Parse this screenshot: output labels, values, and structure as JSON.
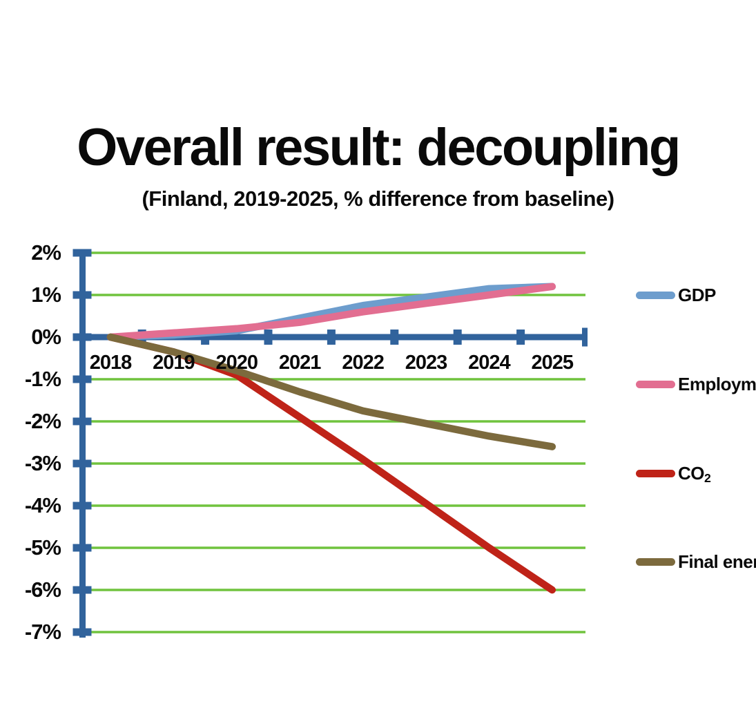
{
  "chart_data": {
    "type": "line",
    "title": "Overall result: decoupling",
    "subtitle": "(Finland, 2019-2025, % difference from baseline)",
    "x": [
      "2018",
      "2019",
      "2020",
      "2021",
      "2022",
      "2023",
      "2024",
      "2025"
    ],
    "xtick_labels": [
      "2018",
      "2019",
      "2020",
      "2021",
      "2022",
      "2023",
      "2024",
      "2025"
    ],
    "ytick_labels": [
      "2%",
      "1%",
      "0%",
      "-1%",
      "-2%",
      "-3%",
      "-4%",
      "-5%",
      "-6%",
      "-7%"
    ],
    "ylim": [
      -7,
      2
    ],
    "ylabel": "% difference from baseline",
    "grid": true,
    "gridline_color": "#70C33E",
    "axis_color": "#31639C",
    "legend_position": "right",
    "series": [
      {
        "name": "GDP",
        "color": "#6D9DCD",
        "values": [
          0,
          0.05,
          0.15,
          0.45,
          0.75,
          0.95,
          1.15,
          1.2
        ]
      },
      {
        "name": "Employment",
        "color": "#E26E91",
        "values": [
          0,
          0.1,
          0.2,
          0.35,
          0.6,
          0.8,
          1.0,
          1.2
        ]
      },
      {
        "name": "CO2",
        "color": "#BF2318",
        "values": [
          0,
          -0.35,
          -0.9,
          -1.9,
          -2.9,
          -3.95,
          -5.0,
          -6.0
        ]
      },
      {
        "name": "Final energy",
        "color": "#7C6A3D",
        "values": [
          0,
          -0.35,
          -0.8,
          -1.3,
          -1.75,
          -2.05,
          -2.35,
          -2.6
        ]
      }
    ],
    "legend": [
      {
        "label": "GDP",
        "sub": ""
      },
      {
        "label": "Employment",
        "sub": ""
      },
      {
        "label": "CO",
        "sub": "2"
      },
      {
        "label": "Final energy",
        "sub": ""
      }
    ]
  }
}
